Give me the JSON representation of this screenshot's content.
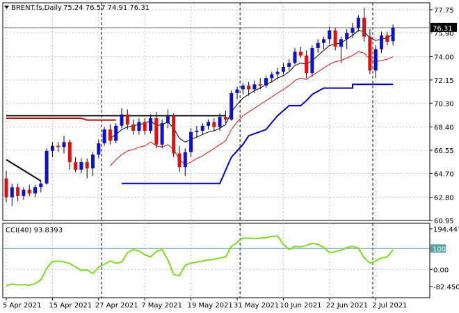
{
  "header": {
    "symbol": "BRENT.fs,Daily",
    "ohlc": "75.24 76.57 74.91 76.31"
  },
  "colors": {
    "bull": "#1010c8",
    "bear": "#e01010",
    "upper_band": "#000000",
    "lower_band": "#e01010",
    "blue_level": "#0000cc",
    "red_level": "#cc0000",
    "cci": "#7ddc1f",
    "grid": "#c0c0c0",
    "cci_ref": "#5aa0a0",
    "current_tag_bg": "#000000",
    "current_tag_fg": "#ffffff"
  },
  "chart_data": [
    {
      "type": "candlestick",
      "title": "",
      "ylim": [
        60.95,
        78.3
      ],
      "y_ticks": [
        "77.75",
        "75.90",
        "74.00",
        "72.15",
        "70.30",
        "68.40",
        "66.55",
        "64.70",
        "62.80",
        "60.95"
      ],
      "x_ticks": [
        "5 Apr 2021",
        "15 Apr 2021",
        "27 Apr 2021",
        "7 May 2021",
        "19 May 2021",
        "31 May 2021",
        "10 Jun 2021",
        "22 Jun 2021",
        "2 Jul 2021"
      ],
      "x_tick_index": [
        0,
        8,
        16,
        24,
        32,
        40,
        48,
        56,
        64
      ],
      "current_price": "76.31",
      "current_value": 76.31,
      "series": [
        {
          "name": "BRENT.fs,Daily",
          "candles": [
            [
              64.3,
              64.9,
              62.4,
              62.8
            ],
            [
              62.8,
              63.9,
              62.1,
              63.6
            ],
            [
              63.6,
              63.9,
              62.5,
              62.9
            ],
            [
              62.9,
              63.6,
              62.6,
              63.4
            ],
            [
              63.4,
              63.8,
              62.9,
              63.1
            ],
            [
              63.1,
              63.8,
              62.8,
              63.6
            ],
            [
              63.6,
              64.1,
              63.2,
              63.9
            ],
            [
              63.9,
              66.7,
              63.8,
              66.5
            ],
            [
              66.5,
              67.2,
              66.0,
              66.9
            ],
            [
              66.9,
              67.2,
              66.4,
              66.8
            ],
            [
              66.8,
              67.7,
              66.3,
              67.2
            ],
            [
              67.2,
              67.4,
              65.0,
              65.6
            ],
            [
              65.6,
              66.0,
              64.8,
              65.0
            ],
            [
              65.0,
              65.9,
              64.7,
              65.6
            ],
            [
              65.6,
              65.9,
              64.3,
              65.1
            ],
            [
              65.1,
              66.4,
              64.5,
              66.2
            ],
            [
              66.2,
              67.4,
              65.9,
              67.1
            ],
            [
              67.1,
              68.4,
              66.9,
              68.2
            ],
            [
              68.2,
              68.6,
              67.0,
              67.3
            ],
            [
              67.3,
              68.7,
              67.1,
              68.5
            ],
            [
              68.5,
              69.9,
              68.3,
              69.4
            ],
            [
              69.4,
              69.8,
              68.2,
              68.6
            ],
            [
              68.6,
              69.0,
              67.8,
              68.1
            ],
            [
              68.1,
              69.1,
              67.8,
              68.8
            ],
            [
              68.8,
              69.1,
              67.8,
              68.1
            ],
            [
              68.1,
              69.4,
              67.9,
              69.1
            ],
            [
              69.1,
              69.6,
              66.7,
              67.0
            ],
            [
              67.0,
              69.0,
              66.7,
              68.7
            ],
            [
              68.7,
              69.8,
              68.3,
              69.3
            ],
            [
              69.3,
              69.5,
              66.0,
              66.3
            ],
            [
              66.3,
              66.9,
              64.8,
              65.2
            ],
            [
              65.2,
              66.7,
              64.5,
              66.4
            ],
            [
              66.4,
              68.3,
              66.0,
              68.0
            ],
            [
              68.0,
              68.5,
              67.6,
              68.1
            ],
            [
              68.1,
              68.7,
              67.8,
              68.5
            ],
            [
              68.5,
              69.0,
              68.2,
              68.8
            ],
            [
              68.8,
              69.1,
              68.1,
              68.4
            ],
            [
              68.4,
              69.5,
              68.1,
              69.2
            ],
            [
              69.2,
              69.7,
              68.7,
              69.0
            ],
            [
              69.0,
              71.3,
              68.9,
              71.1
            ],
            [
              71.1,
              71.6,
              70.6,
              71.4
            ],
            [
              71.4,
              71.9,
              71.0,
              71.7
            ],
            [
              71.7,
              72.0,
              70.9,
              71.4
            ],
            [
              71.4,
              72.1,
              71.1,
              71.8
            ],
            [
              71.8,
              72.3,
              71.4,
              71.7
            ],
            [
              71.7,
              72.5,
              71.5,
              72.3
            ],
            [
              72.3,
              72.8,
              72.0,
              72.6
            ],
            [
              72.6,
              73.1,
              72.2,
              72.8
            ],
            [
              72.8,
              73.5,
              72.6,
              73.2
            ],
            [
              73.2,
              73.8,
              72.9,
              73.5
            ],
            [
              73.5,
              74.7,
              73.4,
              74.4
            ],
            [
              74.4,
              74.8,
              73.9,
              74.1
            ],
            [
              74.1,
              74.5,
              72.3,
              72.7
            ],
            [
              72.7,
              74.9,
              72.4,
              74.7
            ],
            [
              74.7,
              75.4,
              74.3,
              75.1
            ],
            [
              75.1,
              75.6,
              74.6,
              75.4
            ],
            [
              75.4,
              76.4,
              75.0,
              76.1
            ],
            [
              76.1,
              76.3,
              74.5,
              74.8
            ],
            [
              74.8,
              75.6,
              73.5,
              75.4
            ],
            [
              75.4,
              76.2,
              74.6,
              75.9
            ],
            [
              75.9,
              76.7,
              75.5,
              76.3
            ],
            [
              76.3,
              77.3,
              76.0,
              77.1
            ],
            [
              77.1,
              77.9,
              75.2,
              75.6
            ],
            [
              75.6,
              76.2,
              72.6,
              72.9
            ],
            [
              72.9,
              74.9,
              72.3,
              74.6
            ],
            [
              74.6,
              76.0,
              74.3,
              75.7
            ],
            [
              75.7,
              76.0,
              74.9,
              75.2
            ],
            [
              75.24,
              76.57,
              74.91,
              76.31
            ]
          ]
        }
      ],
      "overlays": {
        "upper_band": [
          null,
          null,
          null,
          null,
          null,
          null,
          null,
          null,
          null,
          null,
          null,
          null,
          null,
          null,
          null,
          null,
          null,
          null,
          67.5,
          67.8,
          68.2,
          68.4,
          68.5,
          68.6,
          68.7,
          68.9,
          68.5,
          68.6,
          68.8,
          68.3,
          67.5,
          67.2,
          67.4,
          67.6,
          67.8,
          68.0,
          68.1,
          68.3,
          68.6,
          69.6,
          70.2,
          70.7,
          71.0,
          71.3,
          71.5,
          71.8,
          72.0,
          72.3,
          72.5,
          72.8,
          73.3,
          73.5,
          73.4,
          73.7,
          74.1,
          74.5,
          74.9,
          75.0,
          75.1,
          75.4,
          75.7,
          76.1,
          76.0,
          75.5,
          75.3,
          75.4,
          75.5,
          75.8
        ],
        "lower_band": [
          null,
          null,
          null,
          null,
          null,
          null,
          null,
          null,
          null,
          null,
          null,
          null,
          null,
          null,
          null,
          null,
          null,
          null,
          65.3,
          65.8,
          66.2,
          66.5,
          66.6,
          66.8,
          66.9,
          67.2,
          66.9,
          66.8,
          67.0,
          66.6,
          65.8,
          65.4,
          65.6,
          65.9,
          66.1,
          66.4,
          66.7,
          67.0,
          67.3,
          68.2,
          68.8,
          69.3,
          69.6,
          69.9,
          70.2,
          70.5,
          70.8,
          71.1,
          71.4,
          71.7,
          72.1,
          72.3,
          72.2,
          72.5,
          72.8,
          73.1,
          73.4,
          73.6,
          73.7,
          73.9,
          74.1,
          74.4,
          74.3,
          73.8,
          73.6,
          73.7,
          73.8,
          74.0
        ],
        "channel_line": [
          null,
          null,
          null,
          null,
          null,
          null,
          null,
          null,
          null,
          null,
          null,
          null,
          null,
          null,
          null,
          null,
          null,
          null,
          null,
          null,
          null,
          null,
          null,
          null,
          null,
          null,
          null,
          null,
          null,
          null,
          null,
          null,
          null,
          null,
          null,
          null,
          null,
          null,
          null,
          null,
          null,
          null,
          null,
          null,
          null,
          null,
          null,
          null,
          null,
          null,
          null,
          null,
          null,
          null,
          null,
          null,
          null,
          null,
          null,
          null,
          null,
          null,
          null,
          null,
          null,
          null,
          null,
          null
        ],
        "blue_support": [
          [
            20,
            63.9
          ],
          [
            37,
            63.9
          ],
          [
            39,
            66.0
          ],
          [
            41,
            67.0
          ],
          [
            42,
            67.7
          ],
          [
            45,
            68.2
          ],
          [
            47,
            69.3
          ],
          [
            49,
            70.1
          ],
          [
            51,
            70.1
          ],
          [
            52,
            70.5
          ],
          [
            53,
            71.0
          ],
          [
            55,
            71.5
          ],
          [
            60,
            71.5
          ],
          [
            60,
            71.8
          ],
          [
            67,
            71.8
          ]
        ],
        "red_resistance": [
          [
            0,
            69.1
          ],
          [
            13,
            69.1
          ],
          [
            14,
            68.95
          ],
          [
            19,
            68.95
          ]
        ],
        "black_resistance": [
          [
            0,
            69.3
          ],
          [
            38,
            69.3
          ]
        ],
        "black_trend": [
          [
            0,
            65.8
          ],
          [
            6,
            64.1
          ]
        ]
      }
    },
    {
      "type": "line",
      "title": "",
      "legend": "CCI(40) 93.8393",
      "ylim": [
        -82.4501,
        194.4472
      ],
      "y_ticks": [
        "194.4472",
        "100",
        "0.00",
        "-82.4501"
      ],
      "reference_level": 100,
      "series": [
        {
          "name": "CCI(40)",
          "values": [
            -78,
            -70,
            -75,
            -72,
            -76,
            -68,
            -50,
            5,
            38,
            40,
            36,
            28,
            12,
            -5,
            -2,
            -20,
            10,
            25,
            40,
            30,
            35,
            80,
            95,
            88,
            70,
            60,
            85,
            95,
            45,
            -25,
            -30,
            20,
            30,
            35,
            40,
            45,
            48,
            55,
            60,
            110,
            130,
            150,
            150,
            148,
            150,
            152,
            158,
            160,
            120,
            95,
            110,
            108,
            115,
            125,
            120,
            105,
            80,
            85,
            92,
            105,
            110,
            102,
            55,
            30,
            40,
            55,
            60,
            93.8393
          ]
        }
      ]
    }
  ]
}
